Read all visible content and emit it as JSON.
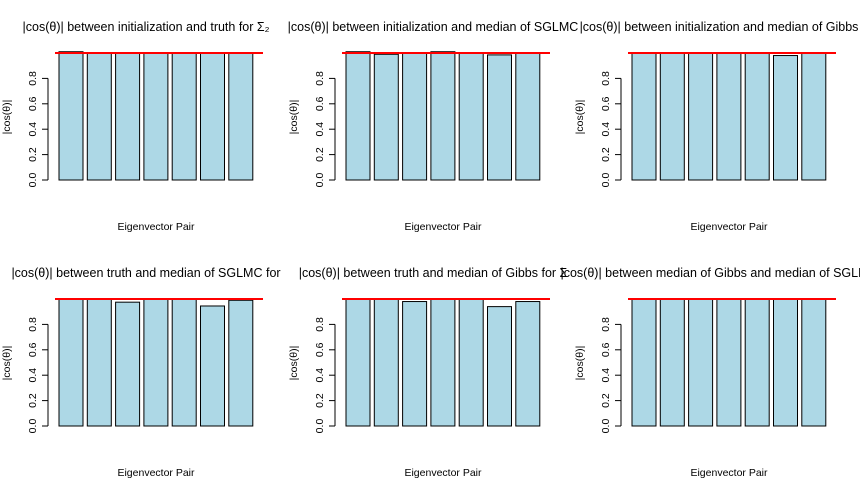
{
  "colors": {
    "bar_fill": "#add8e6",
    "bar_stroke": "#000000",
    "reference_line": "#ff0000",
    "background": "#ffffff"
  },
  "chart_data": [
    {
      "type": "bar",
      "title": "|cos(θ)| between initialization and truth for Σ₂",
      "xlabel": "Eigenvector Pair",
      "ylabel": "|cos(θ)|",
      "ylim": [
        0,
        1
      ],
      "yticks": [
        "0.0",
        "0.2",
        "0.4",
        "0.6",
        "0.8"
      ],
      "values": [
        1.01,
        1.0,
        1.0,
        1.0,
        1.0,
        1.0,
        1.0
      ],
      "reference_line": 1.0
    },
    {
      "type": "bar",
      "title": "|cos(θ)| between initialization and median of SGLMC",
      "xlabel": "Eigenvector Pair",
      "ylabel": "|cos(θ)|",
      "ylim": [
        0,
        1
      ],
      "yticks": [
        "0.0",
        "0.2",
        "0.4",
        "0.6",
        "0.8"
      ],
      "values": [
        1.01,
        0.99,
        1.0,
        1.01,
        1.0,
        0.985,
        1.0
      ],
      "reference_line": 1.0
    },
    {
      "type": "bar",
      "title": "|cos(θ)| between initialization and median of Gibbs",
      "xlabel": "Eigenvector Pair",
      "ylabel": "|cos(θ)|",
      "ylim": [
        0,
        1
      ],
      "yticks": [
        "0.0",
        "0.2",
        "0.4",
        "0.6",
        "0.8"
      ],
      "values": [
        1.0,
        1.0,
        1.0,
        1.0,
        1.0,
        0.98,
        1.0
      ],
      "reference_line": 1.0
    },
    {
      "type": "bar",
      "title": "|cos(θ)| between truth and median of SGLMC for",
      "xlabel": "Eigenvector Pair",
      "ylabel": "|cos(θ)|",
      "ylim": [
        0,
        1
      ],
      "yticks": [
        "0.0",
        "0.2",
        "0.4",
        "0.6",
        "0.8"
      ],
      "values": [
        1.0,
        1.0,
        0.975,
        1.0,
        1.0,
        0.945,
        0.99
      ],
      "reference_line": 1.0
    },
    {
      "type": "bar",
      "title": "|cos(θ)| between truth and median of Gibbs for Σ",
      "xlabel": "Eigenvector Pair",
      "ylabel": "|cos(θ)|",
      "ylim": [
        0,
        1
      ],
      "yticks": [
        "0.0",
        "0.2",
        "0.4",
        "0.6",
        "0.8"
      ],
      "values": [
        1.0,
        1.0,
        0.98,
        1.0,
        1.0,
        0.94,
        0.98
      ],
      "reference_line": 1.0
    },
    {
      "type": "bar",
      "title": "|cos(θ)| between median of Gibbs and median of SGLMC",
      "xlabel": "Eigenvector Pair",
      "ylabel": "|cos(θ)|",
      "ylim": [
        0,
        1
      ],
      "yticks": [
        "0.0",
        "0.2",
        "0.4",
        "0.6",
        "0.8"
      ],
      "values": [
        1.0,
        1.0,
        1.0,
        1.0,
        1.0,
        1.0,
        1.0
      ],
      "reference_line": 1.0
    }
  ]
}
